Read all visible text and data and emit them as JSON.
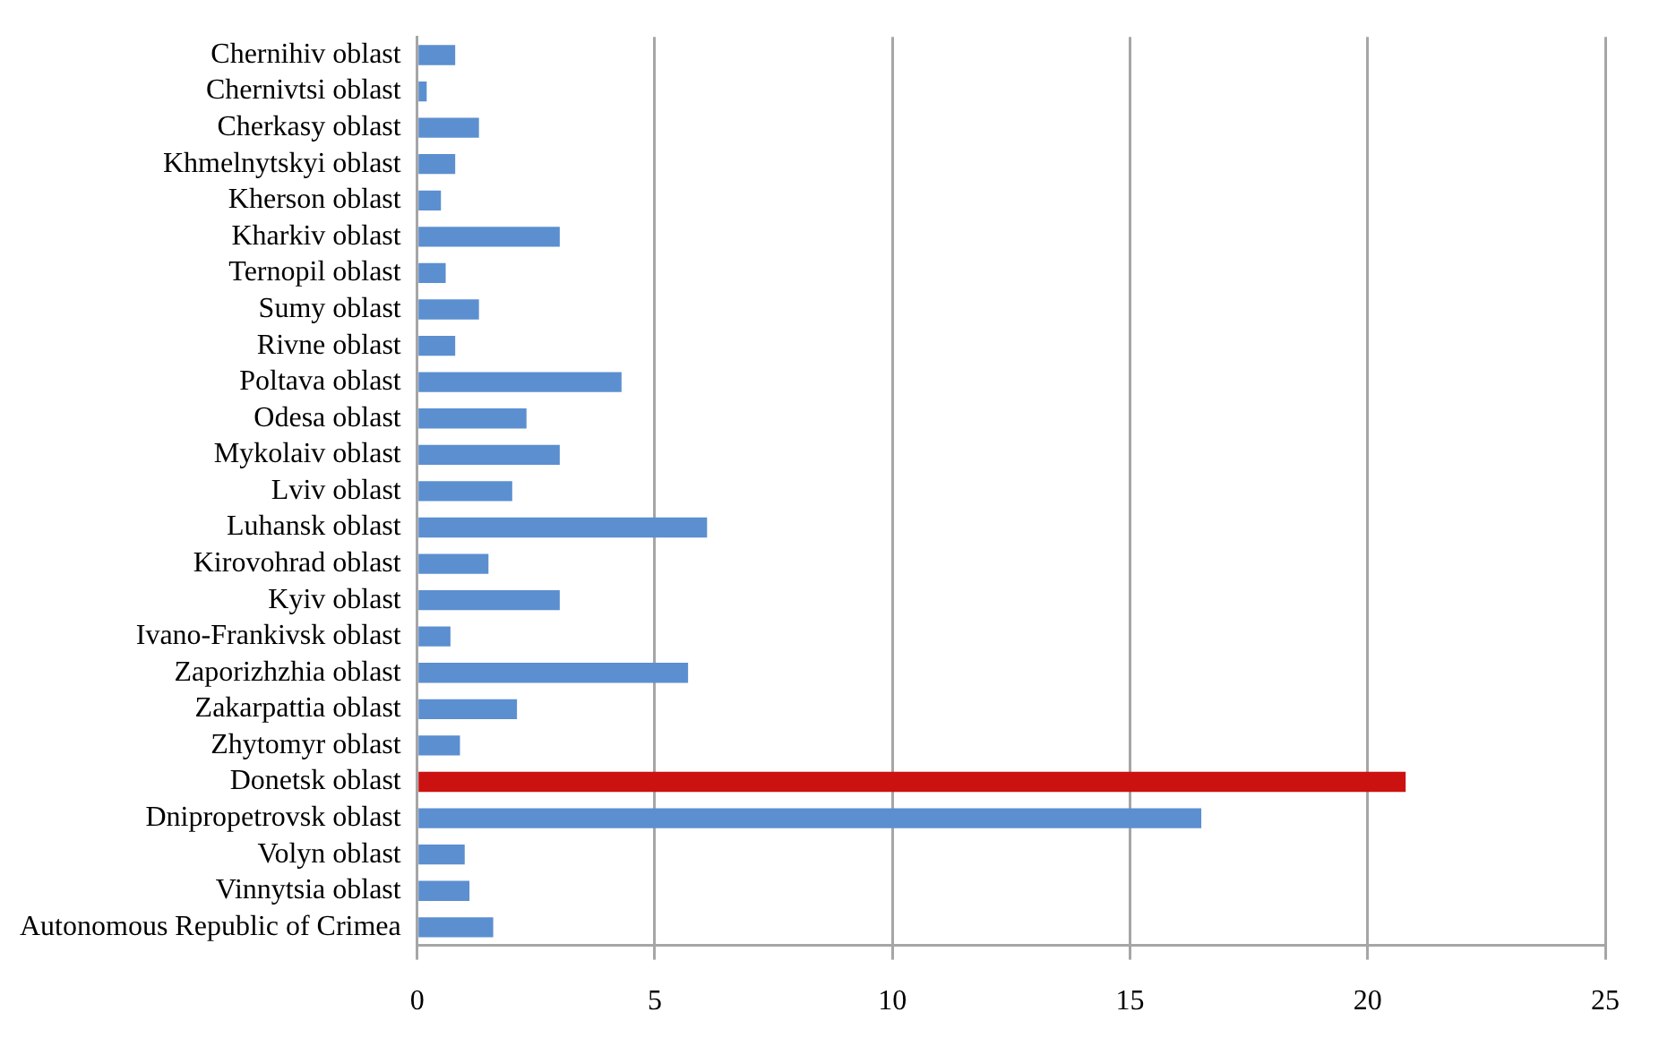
{
  "chart_data": {
    "type": "bar",
    "orientation": "horizontal",
    "categories": [
      "Chernihiv oblast",
      "Chernivtsi oblast",
      "Cherkasy oblast",
      "Khmelnytskyi oblast",
      "Kherson oblast",
      "Kharkiv oblast",
      "Ternopil oblast",
      "Sumy oblast",
      "Rivne oblast",
      "Poltava oblast",
      "Odesa oblast",
      "Mykolaiv oblast",
      "Lviv oblast",
      "Luhansk oblast",
      "Kirovohrad oblast",
      "Kyiv oblast",
      "Ivano-Frankivsk oblast",
      "Zaporizhzhia oblast",
      "Zakarpattia oblast",
      "Zhytomyr oblast",
      "Donetsk oblast",
      "Dnipropetrovsk oblast",
      "Volyn oblast",
      "Vinnytsia oblast",
      "Autonomous Republic of Crimea"
    ],
    "values": [
      0.8,
      0.2,
      1.3,
      0.8,
      0.5,
      3.0,
      0.6,
      1.3,
      0.8,
      4.3,
      2.3,
      3.0,
      2.0,
      6.1,
      1.5,
      3.0,
      0.7,
      5.7,
      2.1,
      0.9,
      20.8,
      16.5,
      1.0,
      1.1,
      1.6
    ],
    "colors": [
      "#5b8fd0",
      "#5b8fd0",
      "#5b8fd0",
      "#5b8fd0",
      "#5b8fd0",
      "#5b8fd0",
      "#5b8fd0",
      "#5b8fd0",
      "#5b8fd0",
      "#5b8fd0",
      "#5b8fd0",
      "#5b8fd0",
      "#5b8fd0",
      "#5b8fd0",
      "#5b8fd0",
      "#5b8fd0",
      "#5b8fd0",
      "#5b8fd0",
      "#5b8fd0",
      "#5b8fd0",
      "#cc1111",
      "#5b8fd0",
      "#5b8fd0",
      "#5b8fd0",
      "#5b8fd0"
    ],
    "xlim": [
      0,
      25
    ],
    "xticks": [
      0,
      5,
      10,
      15,
      20,
      25
    ],
    "grid": "x"
  }
}
